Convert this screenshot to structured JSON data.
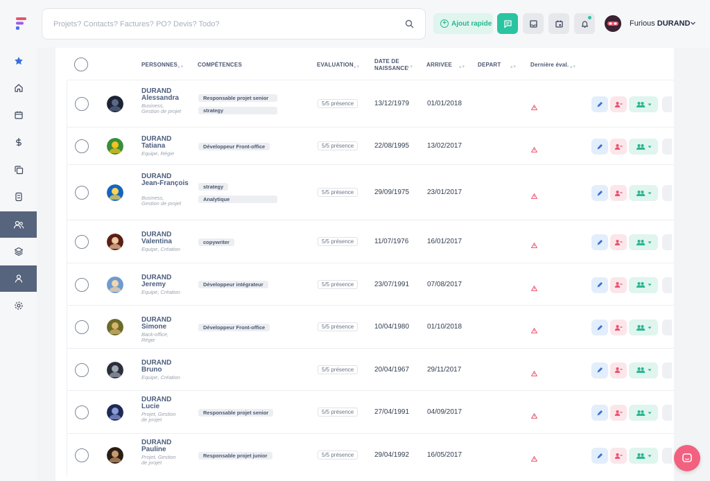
{
  "search": {
    "placeholder": "Projets? Contacts? Factures? PO? Devis? Todo?"
  },
  "toolbar": {
    "quick_add_label": "Ajout rapide"
  },
  "user": {
    "first_name": "Furious",
    "last_name": "DURAND"
  },
  "colors": {
    "accent": "#2ac4a1",
    "sidebar_active": "#56647d",
    "warning": "#e8526f",
    "fab": "#f2617f"
  },
  "sidebar": {
    "items": [
      {
        "icon": "star-icon"
      },
      {
        "icon": "home-icon"
      },
      {
        "icon": "calendar-icon"
      },
      {
        "icon": "dollar-icon"
      },
      {
        "icon": "copy-icon"
      },
      {
        "icon": "calculator-icon"
      },
      {
        "icon": "users-icon"
      },
      {
        "icon": "layers-icon"
      },
      {
        "icon": "user-icon"
      },
      {
        "icon": "gear-icon"
      }
    ]
  },
  "table": {
    "headers": {
      "personnes": "PERSONNES",
      "competences": "COMPÉTENCES",
      "evaluation": "EVALUATION",
      "naissance_1": "DATE DE",
      "naissance_2": "NAISSANCE",
      "arrivee": "ARRIVEE",
      "depart": "DEPART",
      "derniere": "Dernière éval."
    },
    "rows": [
      {
        "last": "DURAND",
        "first": "Alessandra",
        "sub": "Business, Gestion de projet",
        "tags": [
          "Responsable projet senior",
          "strategy"
        ],
        "eval": "5/5 présence",
        "birth": "13/12/1979",
        "arrival": "01/01/2018"
      },
      {
        "last": "DURAND",
        "first": "Tatiana",
        "sub": "Equipe, Régie",
        "tags": [
          "Développeur Front-office"
        ],
        "eval": "5/5 présence",
        "birth": "22/08/1995",
        "arrival": "13/02/2017"
      },
      {
        "last": "DURAND",
        "first": "Jean-François",
        "sub": "Business, Gestion de projet",
        "tags": [
          "strategy",
          "Analytique"
        ],
        "eval": "5/5 présence",
        "birth": "29/09/1975",
        "arrival": "23/01/2017"
      },
      {
        "last": "DURAND",
        "first": "Valentina",
        "sub": "Equipe, Création",
        "tags": [
          "copywriter"
        ],
        "eval": "5/5 présence",
        "birth": "11/07/1976",
        "arrival": "16/01/2017"
      },
      {
        "last": "DURAND",
        "first": "Jeremy",
        "sub": "Equipe, Création",
        "tags": [
          "Développeur intégrateur"
        ],
        "eval": "5/5 présence",
        "birth": "23/07/1991",
        "arrival": "07/08/2017"
      },
      {
        "last": "DURAND",
        "first": "Simone",
        "sub": "Back-office, Régie",
        "tags": [
          "Développeur Front-office"
        ],
        "eval": "5/5 présence",
        "birth": "10/04/1980",
        "arrival": "01/10/2018"
      },
      {
        "last": "DURAND",
        "first": "Bruno",
        "sub": "Equipe, Création",
        "tags": [],
        "eval": "5/5 présence",
        "birth": "20/04/1967",
        "arrival": "29/11/2017"
      },
      {
        "last": "DURAND",
        "first": "Lucie",
        "sub": "Projet, Gestion de projet",
        "tags": [
          "Responsable projet senior"
        ],
        "eval": "5/5 présence",
        "birth": "27/04/1991",
        "arrival": "04/09/2017"
      },
      {
        "last": "DURAND",
        "first": "Pauline",
        "sub": "Projet, Gestion de projet",
        "tags": [
          "Responsable projet junior"
        ],
        "eval": "5/5 présence",
        "birth": "29/04/1992",
        "arrival": "16/05/2017"
      }
    ]
  }
}
